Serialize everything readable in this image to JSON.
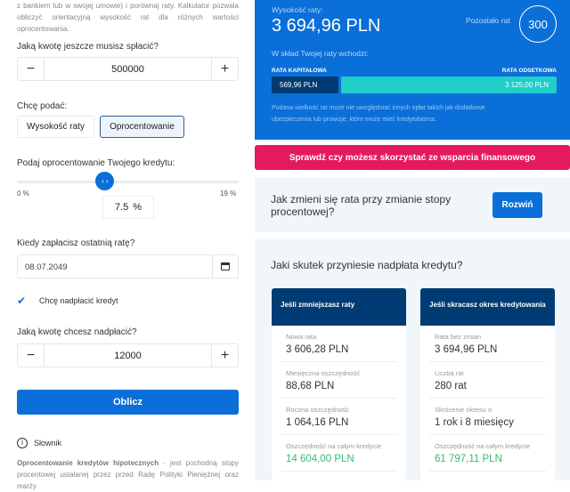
{
  "left": {
    "intro": "z bankiem lub w swojej umowie) i porównaj raty. Kalkulator pozwala obliczyć orientacyjną wysokość rat dla różnych wartości oprocentowania.",
    "amount_label": "Jaką kwotę jeszcze musisz spłacić?",
    "amount_value": "500000",
    "minus": "−",
    "plus": "+",
    "mode_label": "Chcę podać:",
    "mode_options": [
      "Wysokość raty",
      "Oprocentowanie"
    ],
    "mode_selected": "Oprocentowanie",
    "rate_label": "Podaj oprocentowanie Twojego kredytu:",
    "rate_min": "0 %",
    "rate_max": "19 %",
    "rate_value": "7.5",
    "rate_unit": "%",
    "rate_fraction": 0.395,
    "date_label": "Kiedy zapłacisz ostatnią ratę?",
    "date_value": "08.07.2049",
    "overpay_checkbox": "Chcę nadpłacić kredyt",
    "overpay_checked": true,
    "overpay_label": "Jaką kwotę chcesz nadpłacić?",
    "overpay_value": "12000",
    "submit": "Oblicz",
    "glossary_title": "Słownik",
    "glossary_term": "Oprocentowanie kredytów hipotecznych",
    "glossary_text": " - jest pochodną stopy procentowej ustalanej przez przed Radę Polityki Pieniężnej oraz marży"
  },
  "summary": {
    "installment_label": "Wysokość raty:",
    "installment_value": "3 694,96 PLN",
    "remaining_label": "Pozostało rat",
    "remaining_value": "300",
    "composition_label": "W skład Twojej raty wchodzi:",
    "capital_label": "RATA KAPITAŁOWA",
    "interest_label": "RATA ODSETKOWA",
    "capital_value": "569,96 PLN",
    "interest_value": "3 125,00 PLN",
    "note": "Podana wielkość rat może nie uwzględniać innych opłat takich jak dodatkowe ubezpieczenia lub prowizje, które może mieć kredytobiorca."
  },
  "support_button": "Sprawdź czy możesz skorzystać ze wsparcia finansowego",
  "faq": {
    "question": "Jak zmieni się rata przy zmianie stopy procentowej?",
    "button": "Rozwiń"
  },
  "overpay_result": {
    "title": "Jaki skutek przyniesie nadpłata kredytu?",
    "cards": [
      {
        "title": "Jeśli zmniejszasz raty",
        "rows": [
          {
            "k": "Nowa rata",
            "v": "3 606,28 PLN"
          },
          {
            "k": "Miesięczna oszczędność",
            "v": "88,68 PLN"
          },
          {
            "k": "Roczna oszczędność",
            "v": "1 064,16 PLN"
          },
          {
            "k": "Oszczędność na całym kredycie",
            "v": "14 604,00 PLN"
          }
        ]
      },
      {
        "title": "Jeśli skracasz okres kredytowania",
        "rows": [
          {
            "k": "Rata bez zmian",
            "v": "3 694,96 PLN"
          },
          {
            "k": "Liczba rat",
            "v": "280 rat"
          },
          {
            "k": "Skrócenie okresu o",
            "v": "1 rok i 8 miesięcy"
          },
          {
            "k": "Oszczędność na całym kredycie",
            "v": "61 797,11 PLN"
          }
        ]
      }
    ]
  },
  "colors": {
    "primary": "#0a6fd8",
    "navy": "#003b73",
    "teal": "#1fcfc8",
    "pink": "#e5195f",
    "green": "#2fbf71"
  }
}
